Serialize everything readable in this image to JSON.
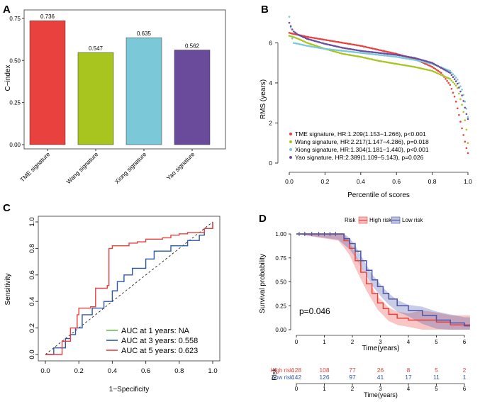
{
  "panels": {
    "A": "A",
    "B": "B",
    "C": "C",
    "D": "D"
  },
  "colors": {
    "red": "#e8413e",
    "green": "#a8c51f",
    "cyan": "#7ac8d8",
    "purple": "#6a4b9b",
    "blue": "#2c58a6",
    "green_roc": "#6cbf45",
    "km_red": "#e8413e",
    "km_blue": "#4a55a8"
  },
  "chart_data": [
    {
      "id": "A",
      "type": "bar",
      "title": "",
      "xlabel": "",
      "ylabel": "C−index",
      "ylim": [
        0,
        0.8
      ],
      "yticks": [
        "0.00",
        "0.25",
        "0.50",
        "0.75"
      ],
      "categories": [
        "TME signature",
        "Wang signature",
        "Xiong signature",
        "Yao signature"
      ],
      "values": [
        0.736,
        0.547,
        0.635,
        0.562
      ],
      "value_labels": [
        "0.736",
        "0.547",
        "0.635",
        "0.562"
      ],
      "colors": [
        "#e8413e",
        "#a8c51f",
        "#7ac8d8",
        "#6a4b9b"
      ]
    },
    {
      "id": "B",
      "type": "scatter",
      "xlabel": "Percentile of scores",
      "ylabel": "RMS (years)",
      "xlim": [
        0,
        1
      ],
      "ylim": [
        0,
        7.5
      ],
      "xticks": [
        "0.0",
        "0.2",
        "0.4",
        "0.6",
        "0.8",
        "1.0"
      ],
      "yticks": [
        "0",
        "2",
        "4",
        "6"
      ],
      "series": [
        {
          "name": "TME signature, HR:1.209(1.153−1.266), p<0.001",
          "color": "#e8413e",
          "x": [
            0,
            0.02,
            0.05,
            0.1,
            0.2,
            0.3,
            0.4,
            0.5,
            0.6,
            0.7,
            0.8,
            0.85,
            0.9,
            0.93,
            0.95,
            0.97,
            0.98,
            0.99,
            1.0
          ],
          "y": [
            6.5,
            6.45,
            6.4,
            6.3,
            6.15,
            6.0,
            5.85,
            5.65,
            5.45,
            5.2,
            4.8,
            4.5,
            3.9,
            3.2,
            2.4,
            1.6,
            1.2,
            0.8,
            0.5
          ]
        },
        {
          "name": "Wang signature, HR:2.217(1.147−4.286), p=0.018",
          "color": "#a8c51f",
          "x": [
            0,
            0.02,
            0.05,
            0.1,
            0.2,
            0.3,
            0.4,
            0.5,
            0.6,
            0.7,
            0.8,
            0.9,
            0.94,
            0.97,
            0.99,
            1.0
          ],
          "y": [
            6.35,
            6.3,
            6.2,
            6.0,
            5.7,
            5.45,
            5.3,
            5.1,
            4.95,
            4.8,
            4.6,
            4.2,
            3.8,
            2.8,
            1.8,
            1.0
          ]
        },
        {
          "name": "Xiong signature, HR:1.304(1.181−1.440), p<0.001",
          "color": "#7ac8d8",
          "x": [
            0,
            0.02,
            0.05,
            0.1,
            0.2,
            0.3,
            0.4,
            0.5,
            0.6,
            0.7,
            0.8,
            0.9,
            0.94,
            0.97,
            0.99,
            1.0
          ],
          "y": [
            7.3,
            6.0,
            5.95,
            5.85,
            5.7,
            5.6,
            5.5,
            5.4,
            5.3,
            5.15,
            4.95,
            4.6,
            4.2,
            3.6,
            2.8,
            2.3
          ]
        },
        {
          "name": "Yao signature, HR:2.389(1.109−5.143), p=0.026",
          "color": "#6a4b9b",
          "x": [
            0,
            0.02,
            0.05,
            0.1,
            0.2,
            0.3,
            0.4,
            0.5,
            0.6,
            0.7,
            0.8,
            0.9,
            0.94,
            0.97,
            0.99,
            1.0
          ],
          "y": [
            7.0,
            6.6,
            6.4,
            6.2,
            5.95,
            5.75,
            5.6,
            5.5,
            5.4,
            5.25,
            5.0,
            4.5,
            4.0,
            3.3,
            2.5,
            2.2
          ]
        }
      ]
    },
    {
      "id": "C",
      "type": "line",
      "xlabel": "1−Specificity",
      "ylabel": "Sensitivity",
      "xlim": [
        0,
        1
      ],
      "ylim": [
        0,
        1
      ],
      "xticks": [
        "0.0",
        "0.2",
        "0.4",
        "0.6",
        "0.8",
        "1.0"
      ],
      "yticks": [
        "0.0",
        "0.2",
        "0.4",
        "0.6",
        "0.8",
        "1.0"
      ],
      "series": [
        {
          "name": "AUC at 1 years: NA",
          "color": "#6cbf45",
          "x": [],
          "y": []
        },
        {
          "name": "AUC at 3 years: 0.558",
          "color": "#2c58a6",
          "x": [
            0,
            0.05,
            0.12,
            0.15,
            0.18,
            0.22,
            0.28,
            0.35,
            0.4,
            0.43,
            0.47,
            0.52,
            0.6,
            0.65,
            0.75,
            0.85,
            0.92,
            0.95,
            1.0
          ],
          "y": [
            0,
            0.05,
            0.12,
            0.15,
            0.2,
            0.3,
            0.35,
            0.4,
            0.48,
            0.55,
            0.6,
            0.65,
            0.72,
            0.78,
            0.82,
            0.86,
            0.9,
            0.95,
            1.0
          ]
        },
        {
          "name": "AUC at 5 years: 0.623",
          "color": "#e8413e",
          "x": [
            0,
            0.1,
            0.15,
            0.19,
            0.2,
            0.27,
            0.3,
            0.37,
            0.38,
            0.4,
            0.5,
            0.55,
            0.6,
            0.7,
            0.75,
            0.8,
            0.85,
            0.95,
            1.0
          ],
          "y": [
            0,
            0.1,
            0.2,
            0.3,
            0.35,
            0.36,
            0.5,
            0.52,
            0.8,
            0.82,
            0.84,
            0.85,
            0.87,
            0.88,
            0.9,
            0.91,
            0.92,
            0.95,
            1.0
          ]
        }
      ],
      "legend_position": "bottom-right"
    },
    {
      "id": "D",
      "type": "line",
      "xlabel": "Time(years)",
      "ylabel": "Survival probability",
      "xlim": [
        0,
        6
      ],
      "ylim": [
        0,
        1
      ],
      "xticks": [
        "0",
        "1",
        "2",
        "3",
        "4",
        "5",
        "6"
      ],
      "yticks": [
        "0.00",
        "0.25",
        "0.50",
        "0.75",
        "1.00"
      ],
      "legend_title": "Risk",
      "annotation": "p=0.046",
      "series": [
        {
          "name": "High risk",
          "color": "#e8413e",
          "x": [
            0,
            1.5,
            1.7,
            1.9,
            2.1,
            2.3,
            2.5,
            2.7,
            2.9,
            3.1,
            3.3,
            3.6,
            4.0,
            4.5,
            5.0,
            5.5,
            6.0,
            6.2
          ],
          "y": [
            1.0,
            1.0,
            0.93,
            0.85,
            0.72,
            0.6,
            0.48,
            0.38,
            0.28,
            0.22,
            0.16,
            0.12,
            0.1,
            0.1,
            0.08,
            0.05,
            0.05,
            0.05
          ]
        },
        {
          "name": "Low risk",
          "color": "#4a55a8",
          "x": [
            0,
            1.5,
            1.7,
            1.9,
            2.1,
            2.3,
            2.5,
            2.7,
            2.9,
            3.1,
            3.3,
            3.6,
            4.0,
            4.5,
            5.0,
            5.5,
            6.0,
            6.2
          ],
          "y": [
            1.0,
            1.0,
            0.95,
            0.9,
            0.82,
            0.72,
            0.62,
            0.52,
            0.45,
            0.38,
            0.32,
            0.25,
            0.2,
            0.15,
            0.1,
            0.07,
            0.04,
            0.04
          ]
        }
      ],
      "risk_table": {
        "label": "Risk",
        "xlabel": "Time(years)",
        "rows": [
          {
            "name": "High risk",
            "color": "#e8413e",
            "counts": [
              "128",
              "108",
              "77",
              "26",
              "8",
              "5",
              "2"
            ]
          },
          {
            "name": "Low risk",
            "color": "#2c58a6",
            "counts": [
              "142",
              "126",
              "97",
              "41",
              "17",
              "11",
              "1"
            ]
          }
        ]
      }
    }
  ]
}
